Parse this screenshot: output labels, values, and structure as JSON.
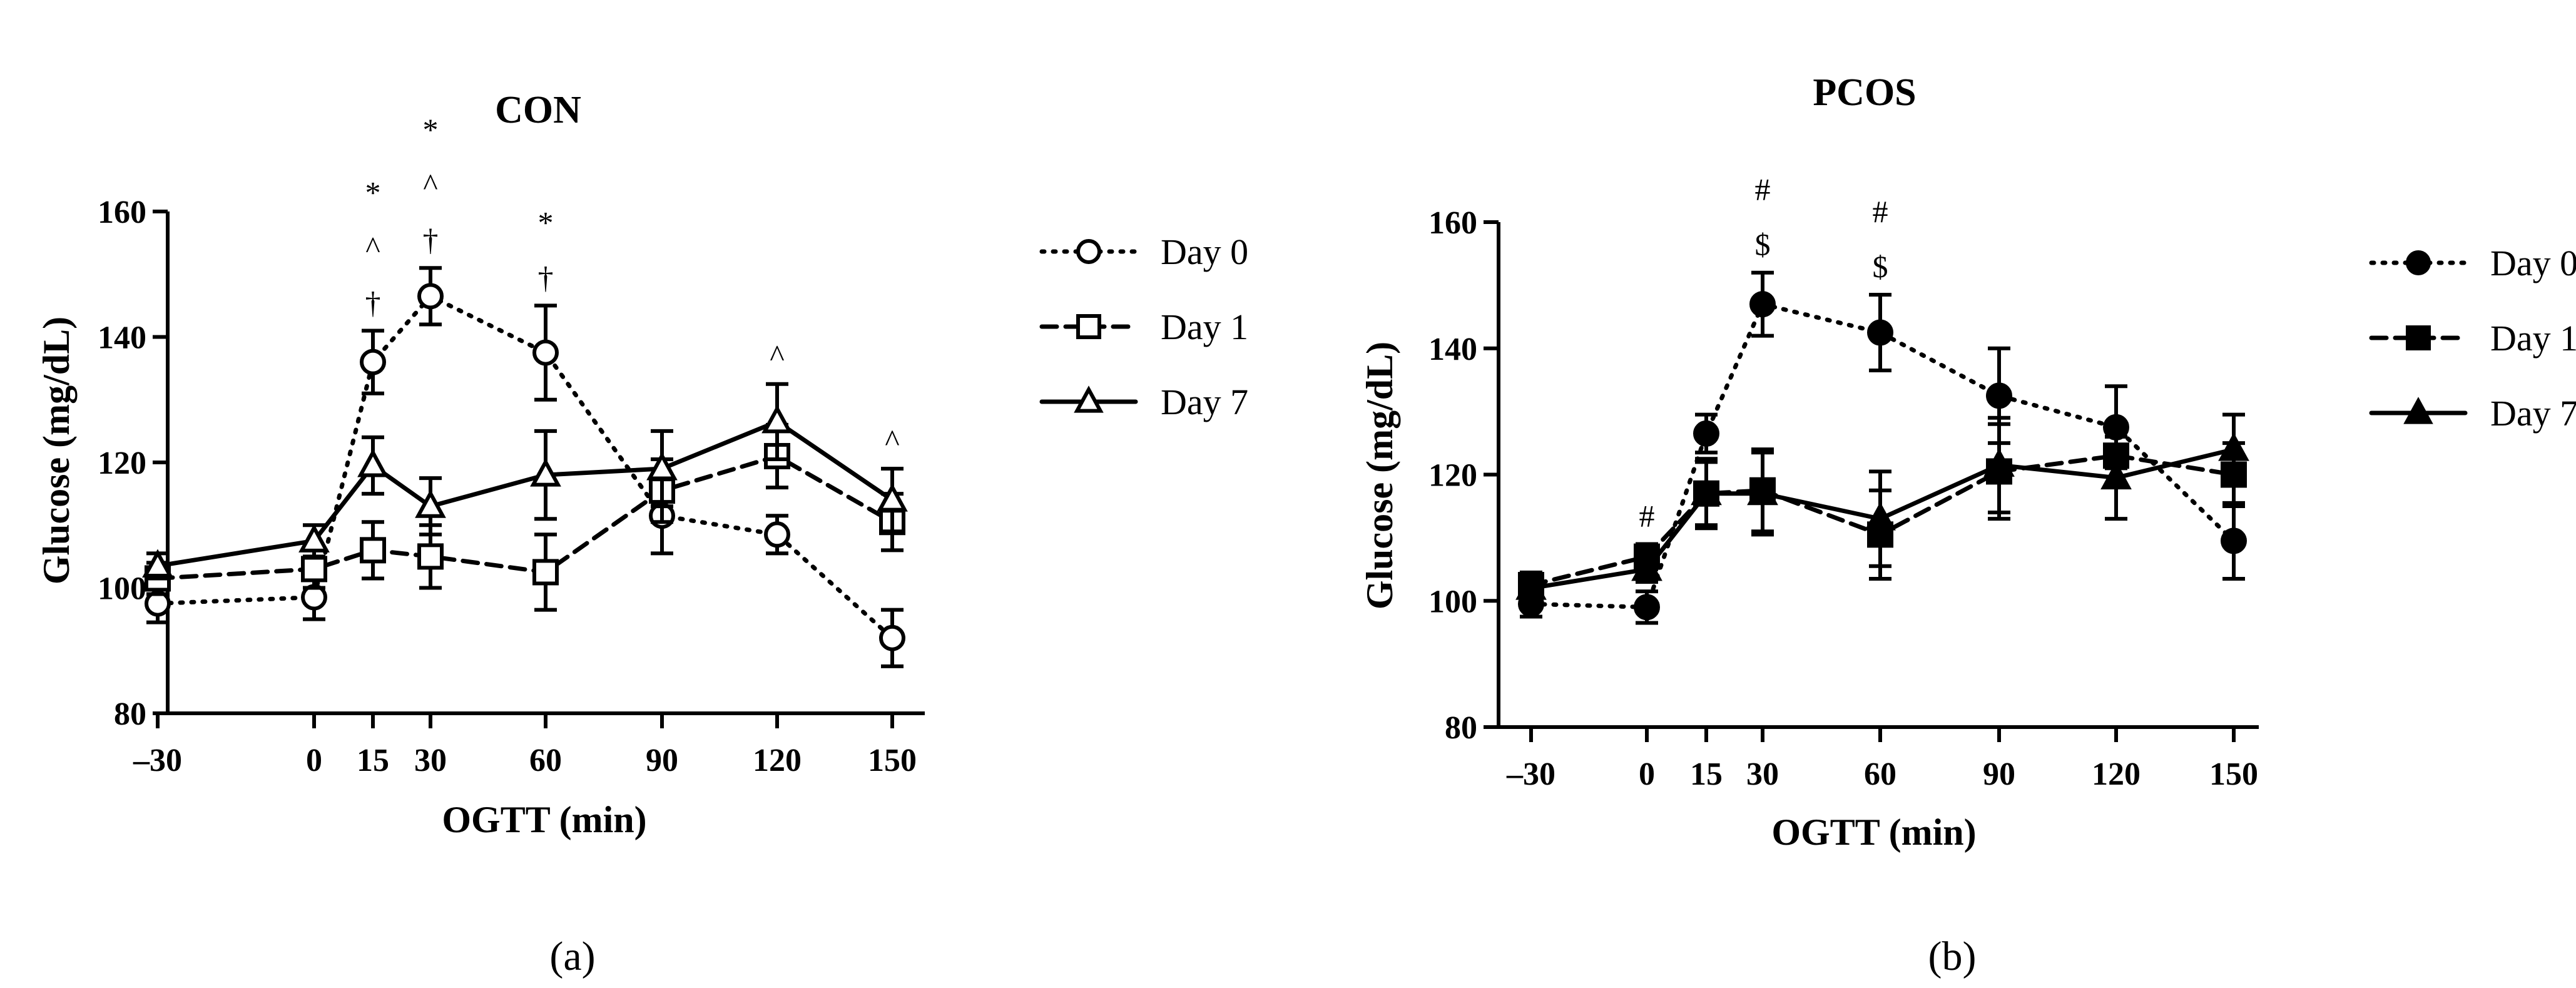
{
  "chart_data": [
    {
      "type": "line",
      "title": "CON",
      "xlabel": "OGTT  (min)",
      "ylabel": "Glucose (mg/dL)",
      "panel_label": "(a)",
      "x": [
        -30,
        0,
        15,
        30,
        60,
        90,
        120,
        150
      ],
      "x_tick_labels": [
        "–30",
        "0",
        "15",
        "30",
        "60",
        "90",
        "120",
        "150"
      ],
      "ylim": [
        80,
        160
      ],
      "y_ticks": [
        80,
        100,
        120,
        140,
        160
      ],
      "grid": false,
      "legend_position": "right",
      "series": [
        {
          "name": "Day 0",
          "line_style": "dotted",
          "marker": "open-circle",
          "values": [
            97.5,
            98.5,
            136,
            146.5,
            137.5,
            111.5,
            108.5,
            92
          ],
          "errors": [
            3,
            3.5,
            5,
            4.5,
            7.5,
            6,
            3,
            4.5
          ]
        },
        {
          "name": "Day 1",
          "line_style": "dashed",
          "marker": "open-square",
          "values": [
            101.5,
            103,
            106,
            105,
            102.5,
            115.5,
            121,
            110.5
          ],
          "errors": [
            2.5,
            3,
            4.5,
            5,
            6,
            5,
            5,
            4.5
          ]
        },
        {
          "name": "Day 7",
          "line_style": "solid",
          "marker": "open-triangle",
          "values": [
            103.5,
            107.5,
            119.5,
            113,
            118,
            119,
            126.5,
            114
          ],
          "errors": [
            2,
            2.5,
            4.5,
            4.5,
            7,
            6,
            6,
            5
          ]
        }
      ],
      "annotations": [
        {
          "x": 15,
          "symbols": [
            "*",
            "^",
            "†"
          ]
        },
        {
          "x": 30,
          "symbols": [
            "*",
            "^",
            "†"
          ]
        },
        {
          "x": 60,
          "symbols": [
            "*",
            "†"
          ]
        },
        {
          "x": 120,
          "symbols": [
            "^"
          ]
        },
        {
          "x": 150,
          "symbols": [
            "^"
          ]
        }
      ]
    },
    {
      "type": "line",
      "title": "PCOS",
      "xlabel": "OGTT  (min)",
      "ylabel": "Glucose (mg/dL)",
      "panel_label": "(b)",
      "x": [
        -30,
        0,
        15,
        30,
        60,
        90,
        120,
        150
      ],
      "x_tick_labels": [
        "–30",
        "0",
        "15",
        "30",
        "60",
        "90",
        "120",
        "150"
      ],
      "ylim": [
        80,
        160
      ],
      "y_ticks": [
        80,
        100,
        120,
        140,
        160
      ],
      "grid": false,
      "legend_position": "right",
      "series": [
        {
          "name": "Day 0",
          "line_style": "dotted",
          "marker": "filled-circle",
          "values": [
            99.5,
            99,
            126.5,
            147,
            142.5,
            132.5,
            127.5,
            109.5
          ],
          "errors": [
            2,
            2.5,
            3,
            5,
            6,
            7.5,
            6.5,
            6
          ]
        },
        {
          "name": "Day 1",
          "line_style": "dashed",
          "marker": "filled-square",
          "values": [
            102.5,
            107,
            117,
            117.5,
            110.5,
            120.5,
            123,
            120
          ],
          "errors": [
            2,
            2,
            5,
            6.5,
            7,
            7.5,
            5,
            5
          ]
        },
        {
          "name": "Day 7",
          "line_style": "solid",
          "marker": "filled-triangle",
          "values": [
            102,
            105,
            117,
            117,
            113,
            121.5,
            119.5,
            124
          ],
          "errors": [
            2,
            2,
            5.5,
            6.5,
            7.5,
            7.5,
            6.5,
            5.5
          ]
        }
      ],
      "annotations": [
        {
          "x": 0,
          "symbols": [
            "#"
          ]
        },
        {
          "x": 30,
          "symbols": [
            "#",
            "$"
          ]
        },
        {
          "x": 60,
          "symbols": [
            "#",
            "$"
          ]
        }
      ]
    }
  ]
}
